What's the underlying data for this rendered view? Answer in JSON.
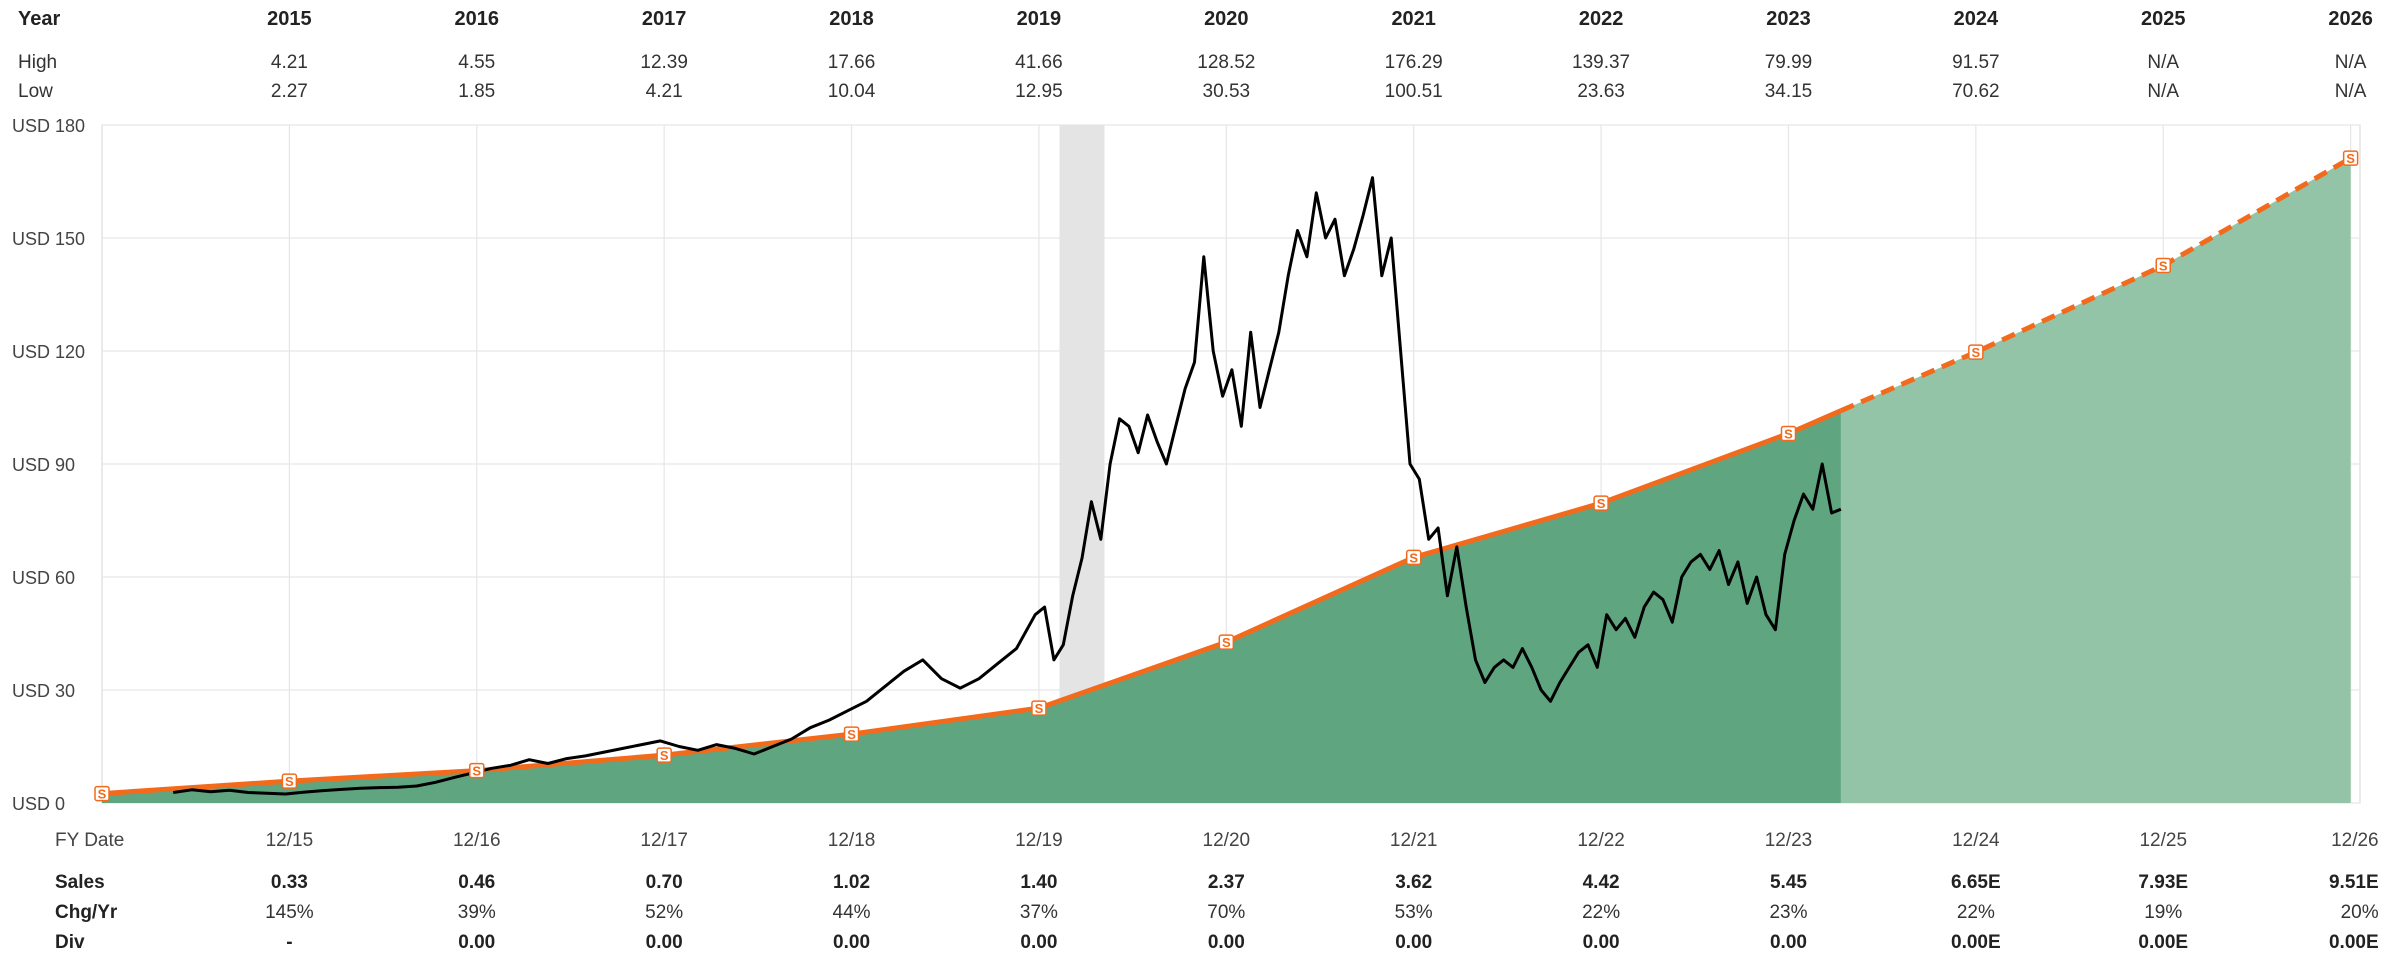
{
  "top_table": {
    "header_label": "Year",
    "high_label": "High",
    "low_label": "Low",
    "years": [
      "2015",
      "2016",
      "2017",
      "2018",
      "2019",
      "2020",
      "2021",
      "2022",
      "2023",
      "2024",
      "2025",
      "2026"
    ],
    "high": [
      "4.21",
      "4.55",
      "12.39",
      "17.66",
      "41.66",
      "128.52",
      "176.29",
      "139.37",
      "79.99",
      "91.57",
      "N/A",
      "N/A"
    ],
    "low": [
      "2.27",
      "1.85",
      "4.21",
      "10.04",
      "12.95",
      "30.53",
      "100.51",
      "23.63",
      "34.15",
      "70.62",
      "N/A",
      "N/A"
    ]
  },
  "bottom_table": {
    "fy_label": "FY Date",
    "sales_label": "Sales",
    "chg_label": "Chg/Yr",
    "div_label": "Div",
    "fy_dates": [
      "12/15",
      "12/16",
      "12/17",
      "12/18",
      "12/19",
      "12/20",
      "12/21",
      "12/22",
      "12/23",
      "12/24",
      "12/25",
      "12/26"
    ],
    "sales": [
      "0.33",
      "0.46",
      "0.70",
      "1.02",
      "1.40",
      "2.37",
      "3.62",
      "4.42",
      "5.45",
      "6.65E",
      "7.93E",
      "9.51E"
    ],
    "chg": [
      "145%",
      "39%",
      "52%",
      "44%",
      "37%",
      "70%",
      "53%",
      "22%",
      "23%",
      "22%",
      "19%",
      "20%"
    ],
    "div": [
      "-",
      "0.00",
      "0.00",
      "0.00",
      "0.00",
      "0.00",
      "0.00",
      "0.00",
      "0.00",
      "0.00E",
      "0.00E",
      "0.00E"
    ]
  },
  "chart_data": {
    "type": "line",
    "y_tick_labels": [
      "USD 0",
      "USD 30",
      "USD 60",
      "USD 90",
      "USD 120",
      "USD 150",
      "USD 180"
    ],
    "y_ticks": [
      0,
      30,
      60,
      90,
      120,
      150,
      180
    ],
    "ylim": [
      0,
      180
    ],
    "xlim": [
      2014.92,
      2026.97
    ],
    "grid": true,
    "marker_label": "S",
    "colors": {
      "price": "#000000",
      "sales_line": "#f26b1d",
      "fill_actual": "#5fa57f",
      "fill_forecast": "#94c4a7",
      "shade": "#e4e4e4",
      "grid": "#e6e6e6"
    },
    "shaded_period": [
      2020.03,
      2020.27
    ],
    "actual_end": 2024.2,
    "sales_line": {
      "x": [
        2014.92,
        2015.92,
        2016.92,
        2017.92,
        2018.92,
        2019.92,
        2020.92,
        2021.92,
        2022.92,
        2023.92,
        2024.92,
        2025.92,
        2026.92
      ],
      "y": [
        2.5,
        5.8,
        8.6,
        12.7,
        18.3,
        25.2,
        42.7,
        65.2,
        79.6,
        98.1,
        119.7,
        142.7,
        171.2
      ]
    },
    "price_series": {
      "x": [
        2015.3,
        2015.4,
        2015.5,
        2015.6,
        2015.7,
        2015.8,
        2015.9,
        2016.0,
        2016.1,
        2016.2,
        2016.3,
        2016.4,
        2016.5,
        2016.6,
        2016.7,
        2016.8,
        2016.9,
        2017.0,
        2017.1,
        2017.2,
        2017.3,
        2017.4,
        2017.5,
        2017.6,
        2017.7,
        2017.8,
        2017.9,
        2018.0,
        2018.1,
        2018.2,
        2018.3,
        2018.4,
        2018.5,
        2018.6,
        2018.7,
        2018.8,
        2018.9,
        2019.0,
        2019.1,
        2019.2,
        2019.3,
        2019.4,
        2019.5,
        2019.6,
        2019.7,
        2019.8,
        2019.9,
        2019.95,
        2020.0,
        2020.05,
        2020.1,
        2020.15,
        2020.2,
        2020.25,
        2020.3,
        2020.35,
        2020.4,
        2020.45,
        2020.5,
        2020.55,
        2020.6,
        2020.65,
        2020.7,
        2020.75,
        2020.8,
        2020.85,
        2020.9,
        2020.95,
        2021.0,
        2021.05,
        2021.1,
        2021.15,
        2021.2,
        2021.25,
        2021.3,
        2021.35,
        2021.4,
        2021.45,
        2021.5,
        2021.55,
        2021.6,
        2021.65,
        2021.7,
        2021.75,
        2021.8,
        2021.85,
        2021.9,
        2021.95,
        2022.0,
        2022.05,
        2022.1,
        2022.15,
        2022.2,
        2022.25,
        2022.3,
        2022.35,
        2022.4,
        2022.45,
        2022.5,
        2022.55,
        2022.6,
        2022.65,
        2022.7,
        2022.75,
        2022.8,
        2022.85,
        2022.9,
        2022.95,
        2023.0,
        2023.05,
        2023.1,
        2023.15,
        2023.2,
        2023.25,
        2023.3,
        2023.35,
        2023.4,
        2023.45,
        2023.5,
        2023.55,
        2023.6,
        2023.65,
        2023.7,
        2023.75,
        2023.8,
        2023.85,
        2023.9,
        2023.95,
        2024.0,
        2024.05,
        2024.1,
        2024.15,
        2024.2
      ],
      "y": [
        2.8,
        3.5,
        3.0,
        3.4,
        2.8,
        2.6,
        2.4,
        2.9,
        3.3,
        3.6,
        3.9,
        4.1,
        4.2,
        4.5,
        5.5,
        6.8,
        8.0,
        9.2,
        10.0,
        11.5,
        10.5,
        11.8,
        12.5,
        13.5,
        14.5,
        15.5,
        16.5,
        15.0,
        14.0,
        15.5,
        14.5,
        13.0,
        15.0,
        17.0,
        20.0,
        22.0,
        24.5,
        27.0,
        31.0,
        35.0,
        38.0,
        33.0,
        30.5,
        33.0,
        37.0,
        41.0,
        50.0,
        52.0,
        38.0,
        42.0,
        55.0,
        65.0,
        80.0,
        70.0,
        90.0,
        102.0,
        100.0,
        93.0,
        103.0,
        96.0,
        90.0,
        100.0,
        110.0,
        117.0,
        145.0,
        120.0,
        108.0,
        115.0,
        100.0,
        125.0,
        105.0,
        115.0,
        125.0,
        140.0,
        152.0,
        145.0,
        162.0,
        150.0,
        155.0,
        140.0,
        147.0,
        156.0,
        166.0,
        140.0,
        150.0,
        120.0,
        90.0,
        86.0,
        70.0,
        73.0,
        55.0,
        68.0,
        52.0,
        38.0,
        32.0,
        36.0,
        38.0,
        36.0,
        41.0,
        36.0,
        30.0,
        27.0,
        32.0,
        36.0,
        40.0,
        42.0,
        36.0,
        50.0,
        46.0,
        49.0,
        44.0,
        52.0,
        56.0,
        54.0,
        48.0,
        60.0,
        64.0,
        66.0,
        62.0,
        67.0,
        58.0,
        64.0,
        53.0,
        60.0,
        50.0,
        46.0,
        66.0,
        75.0,
        82.0,
        78.0,
        90.0,
        77.0,
        78.0
      ]
    }
  }
}
